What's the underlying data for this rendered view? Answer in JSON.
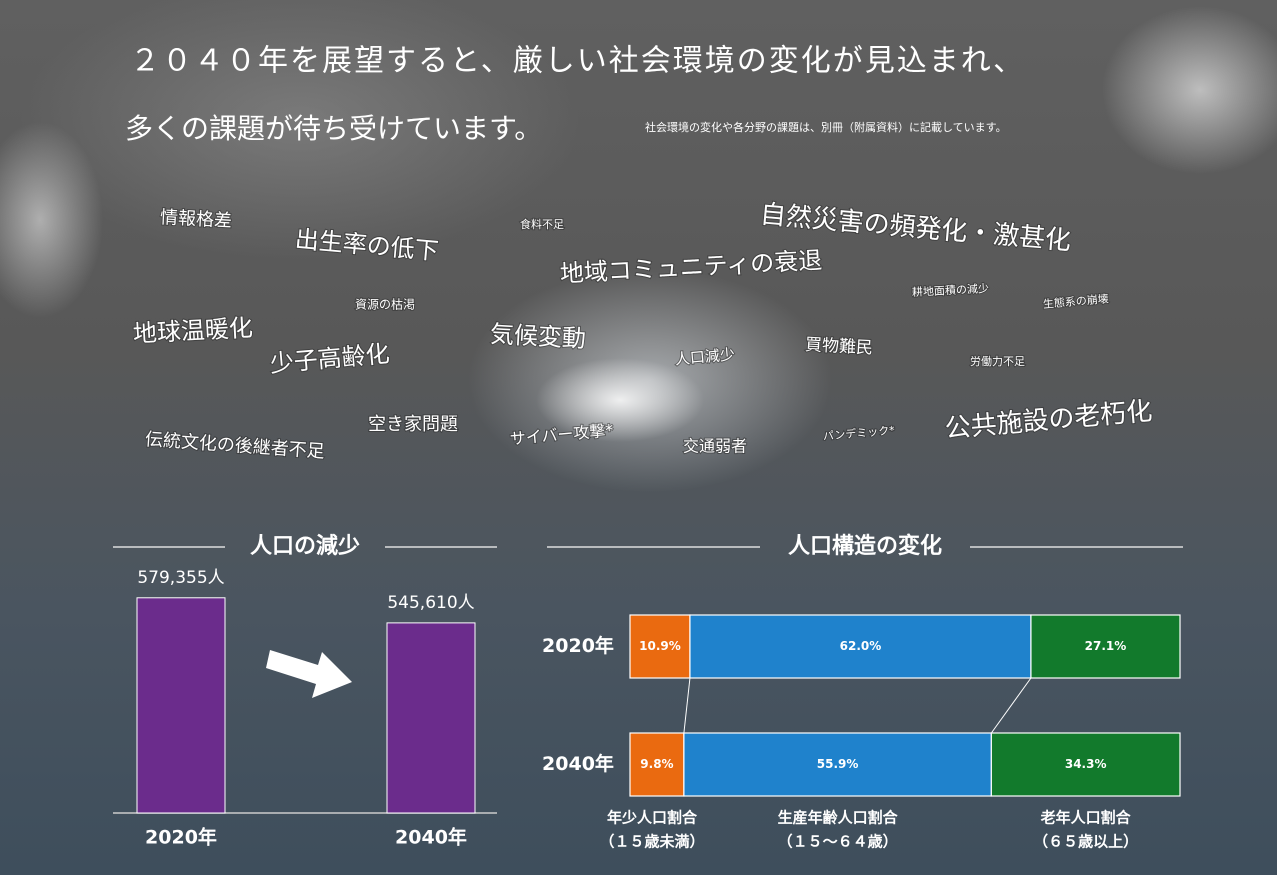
{
  "header": {
    "title_line1": "２０４０年を展望すると、厳しい社会環境の変化が見込まれ、",
    "title_line2": "多くの課題が待ち受けています。",
    "note": "社会環境の変化や各分野の課題は、別冊（附属資料）に記載しています。"
  },
  "keywords": [
    "情報格差",
    "出生率の低下",
    "食料不足",
    "自然災害の頻発化・激甚化",
    "地域コミュニティの衰退",
    "資源の枯渇",
    "耕地面積の減少",
    "生態系の崩壊",
    "地球温暖化",
    "気候変動",
    "少子高齢化",
    "人口減少",
    "買物難民",
    "労働力不足",
    "空き家問題",
    "伝統文化の後継者不足",
    "サイバー攻撃*",
    "交通弱者",
    "パンデミック*",
    "公共施設の老朽化"
  ],
  "chart_data": [
    {
      "type": "bar",
      "title": "人口の減少",
      "categories": [
        "2020年",
        "2040年"
      ],
      "values": [
        579355,
        545610
      ],
      "value_labels": [
        "579,355人",
        "545,610人"
      ],
      "color": "#6b2c8c",
      "ylim": [
        290000,
        610000
      ]
    },
    {
      "type": "stacked-hbar",
      "title": "人口構造の変化",
      "categories": [
        "2020年",
        "2040年"
      ],
      "xlim": [
        0,
        100
      ],
      "series": [
        {
          "name": "年少人口割合",
          "note": "（１５歳未満）",
          "color": "#ea6a10",
          "values": [
            10.9,
            9.8
          ],
          "value_labels": [
            "10.9%",
            "9.8%"
          ]
        },
        {
          "name": "生産年齢人口割合",
          "note": "（１５～６４歳）",
          "color": "#1f82cc",
          "values": [
            62.0,
            55.9
          ],
          "value_labels": [
            "62.0%",
            "55.9%"
          ]
        },
        {
          "name": "老年人口割合",
          "note": "（６５歳以上）",
          "color": "#127a2c",
          "values": [
            27.1,
            34.3
          ],
          "value_labels": [
            "27.1%",
            "34.3%"
          ]
        }
      ]
    }
  ]
}
